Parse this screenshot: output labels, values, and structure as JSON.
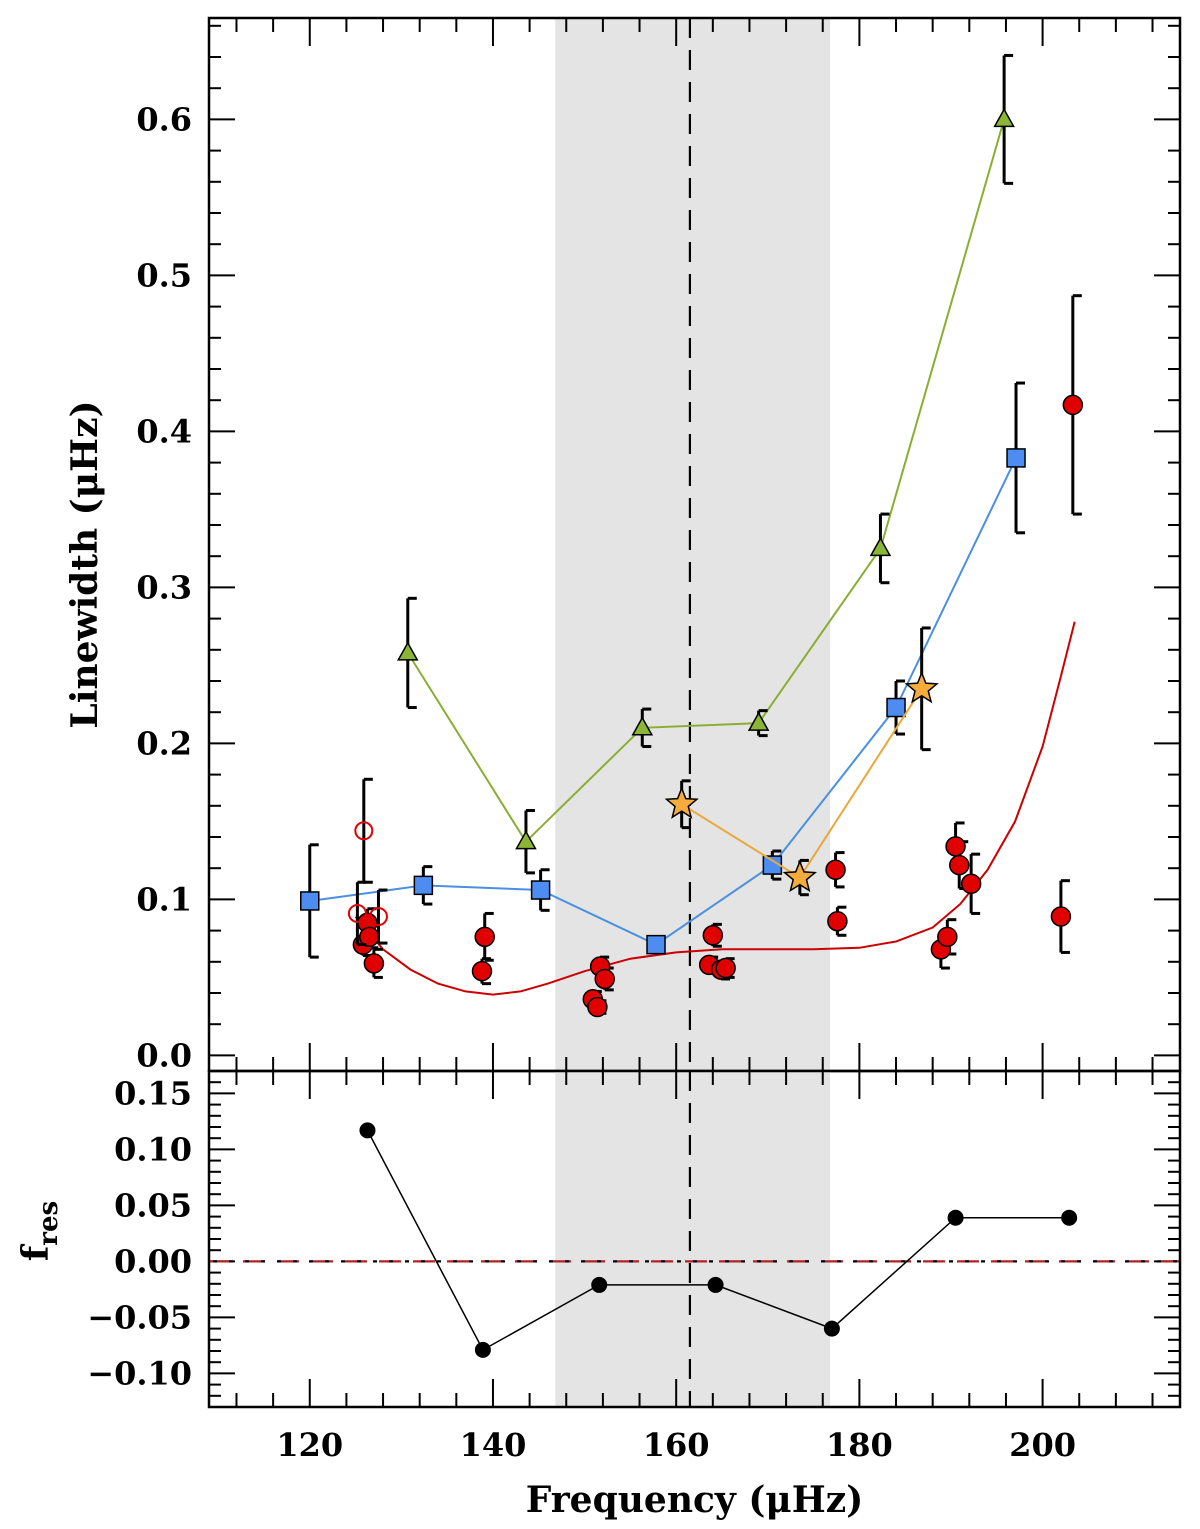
{
  "chart_data": [
    {
      "type": "scatter",
      "panel": "top",
      "xlabel": "Frequency (μHz)",
      "ylabel": "Linewidth (μHz)",
      "xlim": [
        109,
        215
      ],
      "ylim": [
        -0.01,
        0.665
      ],
      "xticks": [
        120,
        140,
        160,
        180,
        200
      ],
      "xtick_labels": [
        "120",
        "140",
        "160",
        "180",
        "200"
      ],
      "yticks": [
        0.0,
        0.1,
        0.2,
        0.3,
        0.4,
        0.5,
        0.6
      ],
      "ytick_labels": [
        "0.0",
        "0.1",
        "0.2",
        "0.3",
        "0.4",
        "0.5",
        "0.6"
      ],
      "shaded_band": [
        146.8,
        176.8
      ],
      "vline": 161.5,
      "series": [
        {
          "name": "green triangles",
          "marker": "triangle",
          "color": "#8bb535",
          "line_color": "#8aae32",
          "connected": true,
          "x": [
            130.7,
            143.6,
            156.3,
            169.0,
            182.3,
            195.8
          ],
          "y": [
            0.258,
            0.137,
            0.21,
            0.213,
            0.325,
            0.6
          ],
          "err": [
            0.035,
            0.02,
            0.012,
            0.008,
            0.022,
            0.041
          ]
        },
        {
          "name": "blue squares",
          "marker": "square",
          "color": "#4d8cf0",
          "line_color": "#4a90e2",
          "connected": true,
          "x": [
            120.0,
            132.4,
            145.2,
            157.8,
            170.5,
            184.0,
            197.1
          ],
          "y": [
            0.099,
            0.109,
            0.106,
            0.071,
            0.122,
            0.223,
            0.383
          ],
          "err": [
            0.036,
            0.012,
            0.013,
            0.004,
            0.009,
            0.017,
            0.048
          ]
        },
        {
          "name": "orange stars",
          "marker": "star",
          "color": "#f5ac3c",
          "line_color": "#eba83a",
          "connected": true,
          "x": [
            160.6,
            173.5,
            186.8
          ],
          "y": [
            0.161,
            0.114,
            0.235
          ],
          "err": [
            0.015,
            0.011,
            0.039
          ]
        },
        {
          "name": "red filled circles",
          "marker": "circle",
          "color": "#e10000",
          "connected": false,
          "x": [
            125.8,
            126.3,
            126.5,
            127.0,
            138.8,
            139.1,
            150.9,
            151.4,
            151.7,
            152.2,
            163.6,
            164.0,
            164.9,
            165.4,
            177.4,
            177.6,
            188.9,
            189.6,
            190.5,
            190.9,
            192.2,
            202.0,
            203.3
          ],
          "y": [
            0.071,
            0.085,
            0.076,
            0.059,
            0.054,
            0.076,
            0.036,
            0.031,
            0.057,
            0.049,
            0.058,
            0.077,
            0.055,
            0.056,
            0.119,
            0.086,
            0.068,
            0.076,
            0.134,
            0.122,
            0.11,
            0.089,
            0.417
          ],
          "err": [
            0.007,
            0.009,
            0.007,
            0.009,
            0.008,
            0.015,
            0.005,
            0.004,
            0.006,
            0.007,
            0.005,
            0.007,
            0.006,
            0.006,
            0.011,
            0.009,
            0.012,
            0.011,
            0.015,
            0.015,
            0.019,
            0.023,
            0.07
          ]
        },
        {
          "name": "red open circles",
          "marker": "open-circle",
          "color": "#e10000",
          "connected": false,
          "x": [
            125.2,
            125.9,
            127.5
          ],
          "y": [
            0.091,
            0.144,
            0.089
          ],
          "err": [
            0.02,
            0.033,
            0.017
          ]
        },
        {
          "name": "red fit curve",
          "marker": "none",
          "color": "#cc0000",
          "connected": true,
          "x": [
            125.0,
            128.0,
            131.0,
            134.0,
            137.0,
            140.0,
            143.0,
            146.0,
            150.0,
            155.0,
            160.0,
            165.0,
            170.0,
            175.0,
            180.0,
            184.0,
            188.0,
            191.0,
            194.0,
            197.0,
            200.0,
            202.0,
            203.5
          ],
          "y": [
            0.089,
            0.068,
            0.055,
            0.046,
            0.041,
            0.039,
            0.041,
            0.046,
            0.054,
            0.062,
            0.066,
            0.068,
            0.068,
            0.068,
            0.069,
            0.073,
            0.082,
            0.097,
            0.119,
            0.15,
            0.198,
            0.243,
            0.278
          ]
        }
      ]
    },
    {
      "type": "line",
      "panel": "bottom",
      "xlabel": "Frequency (μHz)",
      "ylabel": "f_res",
      "ylabel_main": "f",
      "ylabel_sub": "res",
      "xlim": [
        109,
        215
      ],
      "ylim": [
        -0.13,
        0.17
      ],
      "yticks": [
        -0.1,
        -0.05,
        0.0,
        0.05,
        0.1,
        0.15
      ],
      "ytick_labels": [
        "−0.10",
        "−0.05",
        "0.00",
        "0.05",
        "0.10",
        "0.15"
      ],
      "reference_line": 0.0,
      "series": [
        {
          "name": "residuals",
          "marker": "circle",
          "color": "#000000",
          "x": [
            126.3,
            138.9,
            151.6,
            164.3,
            177.0,
            190.5,
            202.9
          ],
          "y": [
            0.117,
            -0.079,
            -0.021,
            -0.021,
            -0.06,
            0.039,
            0.039
          ]
        }
      ]
    }
  ]
}
